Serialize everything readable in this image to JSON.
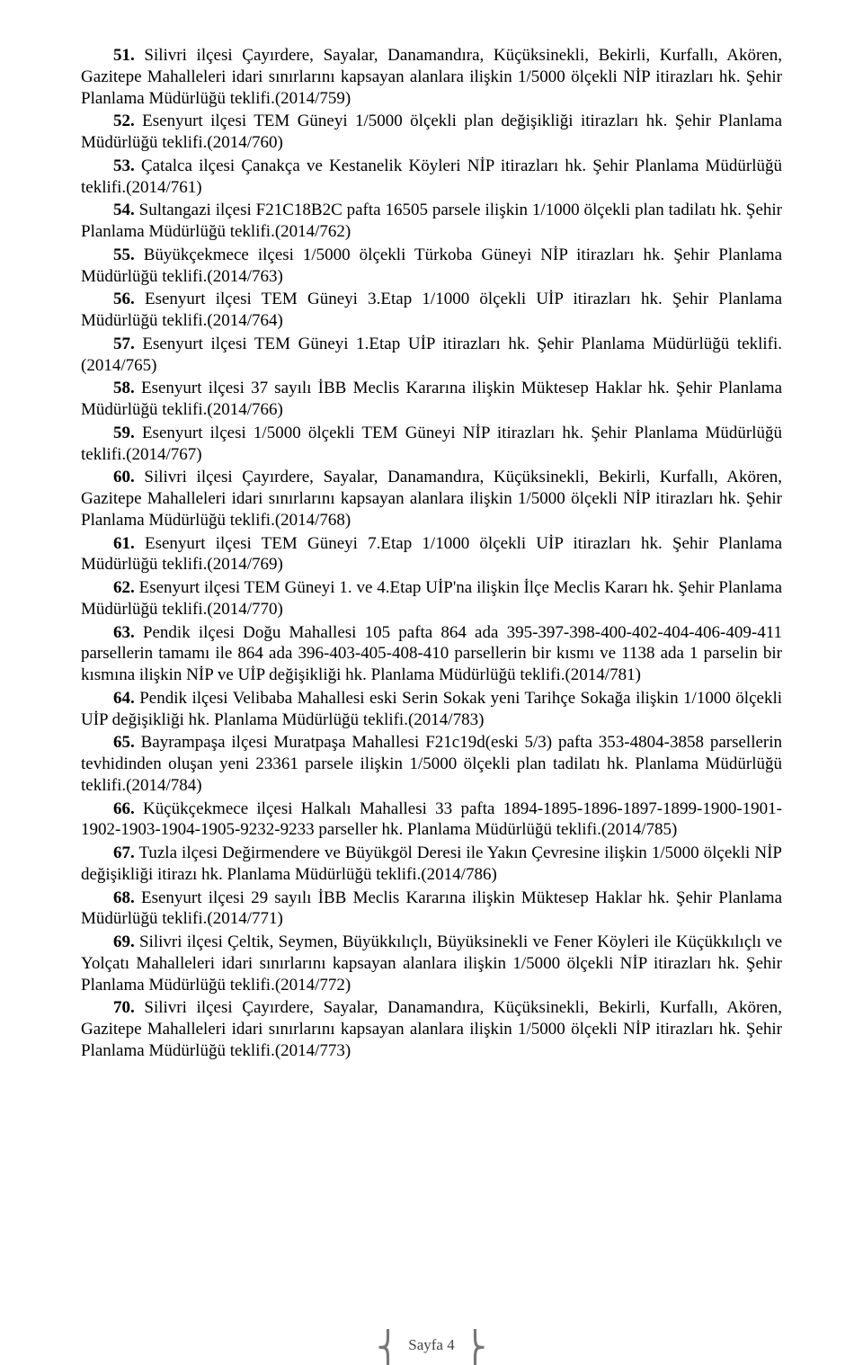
{
  "page_label": "Sayfa 4",
  "items": [
    {
      "n": "51.",
      "t": "Silivri ilçesi Çayırdere, Sayalar, Danamandıra, Küçüksinekli, Bekirli, Kurfallı, Akören, Gazitepe Mahalleleri idari sınırlarını kapsayan alanlara ilişkin 1/5000 ölçekli NİP itirazları hk. Şehir Planlama Müdürlüğü teklifi.(2014/759)"
    },
    {
      "n": "52.",
      "t": "Esenyurt ilçesi TEM Güneyi 1/5000 ölçekli plan değişikliği itirazları hk. Şehir Planlama Müdürlüğü teklifi.(2014/760)"
    },
    {
      "n": "53.",
      "t": "Çatalca ilçesi Çanakça ve Kestanelik Köyleri NİP itirazları hk. Şehir Planlama Müdürlüğü teklifi.(2014/761)"
    },
    {
      "n": "54.",
      "t": "Sultangazi ilçesi F21C18B2C pafta 16505 parsele ilişkin 1/1000 ölçekli plan tadilatı hk. Şehir Planlama Müdürlüğü teklifi.(2014/762)"
    },
    {
      "n": "55.",
      "t": "Büyükçekmece ilçesi 1/5000 ölçekli Türkoba Güneyi NİP itirazları hk. Şehir Planlama Müdürlüğü teklifi.(2014/763)"
    },
    {
      "n": "56.",
      "t": "Esenyurt ilçesi TEM Güneyi 3.Etap 1/1000 ölçekli UİP itirazları hk. Şehir Planlama Müdürlüğü teklifi.(2014/764)"
    },
    {
      "n": "57.",
      "t": "Esenyurt ilçesi TEM Güneyi 1.Etap UİP itirazları hk. Şehir Planlama Müdürlüğü teklifi.(2014/765)"
    },
    {
      "n": "58.",
      "t": "Esenyurt ilçesi 37 sayılı İBB Meclis Kararına ilişkin Müktesep Haklar hk. Şehir Planlama Müdürlüğü teklifi.(2014/766)"
    },
    {
      "n": "59.",
      "t": "Esenyurt ilçesi 1/5000 ölçekli TEM Güneyi NİP itirazları hk. Şehir Planlama Müdürlüğü teklifi.(2014/767)"
    },
    {
      "n": "60.",
      "t": "Silivri ilçesi Çayırdere, Sayalar, Danamandıra, Küçüksinekli, Bekirli, Kurfallı, Akören, Gazitepe Mahalleleri idari sınırlarını kapsayan alanlara ilişkin 1/5000 ölçekli NİP itirazları hk. Şehir Planlama Müdürlüğü teklifi.(2014/768)"
    },
    {
      "n": "61.",
      "t": "Esenyurt ilçesi TEM Güneyi 7.Etap 1/1000 ölçekli UİP itirazları hk. Şehir Planlama Müdürlüğü teklifi.(2014/769)"
    },
    {
      "n": "62.",
      "t": "Esenyurt ilçesi TEM Güneyi 1. ve 4.Etap UİP'na ilişkin İlçe Meclis Kararı hk. Şehir Planlama Müdürlüğü teklifi.(2014/770)"
    },
    {
      "n": "63.",
      "t": "Pendik ilçesi Doğu Mahallesi 105 pafta 864 ada 395-397-398-400-402-404-406-409-411 parsellerin tamamı ile 864 ada 396-403-405-408-410 parsellerin bir kısmı ve 1138 ada 1 parselin bir kısmına ilişkin NİP ve UİP değişikliği hk. Planlama Müdürlüğü teklifi.(2014/781)"
    },
    {
      "n": "64.",
      "t": "Pendik ilçesi Velibaba Mahallesi eski Serin Sokak yeni Tarihçe Sokağa ilişkin 1/1000 ölçekli UİP değişikliği hk. Planlama Müdürlüğü teklifi.(2014/783)"
    },
    {
      "n": "65.",
      "t": "Bayrampaşa ilçesi Muratpaşa Mahallesi F21c19d(eski 5/3) pafta 353-4804-3858 parsellerin tevhidinden oluşan yeni 23361 parsele ilişkin 1/5000 ölçekli plan tadilatı hk. Planlama Müdürlüğü teklifi.(2014/784)"
    },
    {
      "n": "66.",
      "t": "Küçükçekmece ilçesi Halkalı Mahallesi 33 pafta 1894-1895-1896-1897-1899-1900-1901-1902-1903-1904-1905-9232-9233 parseller hk. Planlama Müdürlüğü teklifi.(2014/785)"
    },
    {
      "n": "67.",
      "t": "Tuzla ilçesi Değirmendere ve Büyükgöl Deresi ile Yakın Çevresine ilişkin 1/5000 ölçekli NİP değişikliği itirazı hk. Planlama Müdürlüğü teklifi.(2014/786)"
    },
    {
      "n": "68.",
      "t": "Esenyurt ilçesi 29 sayılı İBB Meclis Kararına ilişkin Müktesep Haklar hk. Şehir Planlama Müdürlüğü teklifi.(2014/771)"
    },
    {
      "n": "69.",
      "t": "Silivri ilçesi Çeltik, Seymen, Büyükkılıçlı, Büyüksinekli ve Fener Köyleri ile Küçükkılıçlı ve Yolçatı Mahalleleri idari sınırlarını kapsayan alanlara ilişkin 1/5000 ölçekli NİP itirazları hk. Şehir Planlama Müdürlüğü teklifi.(2014/772)"
    },
    {
      "n": "70.",
      "t": "Silivri ilçesi Çayırdere, Sayalar, Danamandıra, Küçüksinekli, Bekirli, Kurfallı, Akören, Gazitepe Mahalleleri idari sınırlarını kapsayan alanlara ilişkin 1/5000 ölçekli NİP itirazları hk. Şehir Planlama Müdürlüğü teklifi.(2014/773)"
    }
  ]
}
